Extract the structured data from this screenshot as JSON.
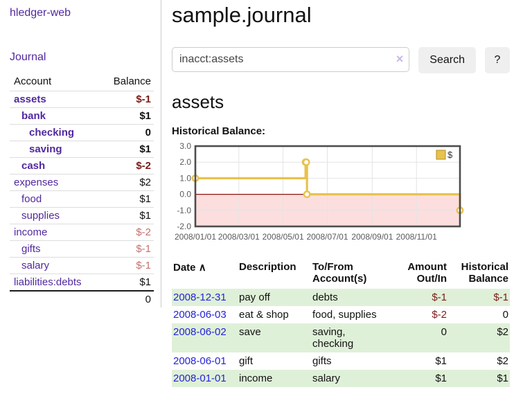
{
  "sidebar": {
    "app_title": "hledger-web",
    "journal_link": "Journal",
    "account_header": "Account",
    "balance_header": "Balance",
    "accounts": [
      {
        "name": "assets",
        "depth": 1,
        "bold": true,
        "name_style": "",
        "balance": "$-1",
        "balance_style": "negstrong"
      },
      {
        "name": "bank",
        "depth": 2,
        "bold": true,
        "name_style": "",
        "balance": "$1",
        "balance_style": ""
      },
      {
        "name": "checking",
        "depth": 3,
        "bold": true,
        "name_style": "",
        "balance": "0",
        "balance_style": ""
      },
      {
        "name": "saving",
        "depth": 3,
        "bold": true,
        "name_style": "",
        "balance": "$1",
        "balance_style": ""
      },
      {
        "name": "cash",
        "depth": 2,
        "bold": true,
        "name_style": "",
        "balance": "$-2",
        "balance_style": "negstrong"
      },
      {
        "name": "expenses",
        "depth": 1,
        "bold": false,
        "name_style": "",
        "balance": "$2",
        "balance_style": ""
      },
      {
        "name": "food",
        "depth": 2,
        "bold": false,
        "name_style": "",
        "balance": "$1",
        "balance_style": ""
      },
      {
        "name": "supplies",
        "depth": 2,
        "bold": false,
        "name_style": "",
        "balance": "$1",
        "balance_style": ""
      },
      {
        "name": "income",
        "depth": 1,
        "bold": false,
        "name_style": "muted",
        "balance": "$-2",
        "balance_style": "negmuted"
      },
      {
        "name": "gifts",
        "depth": 2,
        "bold": false,
        "name_style": "muted",
        "balance": "$-1",
        "balance_style": "negmuted"
      },
      {
        "name": "salary",
        "depth": 2,
        "bold": false,
        "name_style": "blue",
        "balance": "$-1",
        "balance_style": "negmuted"
      },
      {
        "name": "liabilities:debts",
        "depth": 1,
        "bold": false,
        "name_style": "",
        "balance": "$1",
        "balance_style": ""
      }
    ],
    "total": "0"
  },
  "header": {
    "title": "sample.journal"
  },
  "search": {
    "value": "inacct:assets",
    "clear_icon": "×",
    "button_label": "Search",
    "help_label": "?"
  },
  "main": {
    "account_heading": "assets",
    "chart_label": "Historical Balance:"
  },
  "chart_data": {
    "type": "line",
    "step": true,
    "title": "Historical Balance:",
    "legend": "$",
    "legend_position": "top-right",
    "grid": true,
    "xlim": [
      "2008-01-01",
      "2008-12-31"
    ],
    "ylim": [
      -2,
      3
    ],
    "x_ticks": [
      "2008/01/01",
      "2008/03/01",
      "2008/05/01",
      "2008/07/01",
      "2008/09/01",
      "2008/11/01"
    ],
    "y_ticks": [
      3.0,
      2.0,
      1.0,
      0.0,
      -1.0,
      -2.0
    ],
    "series": [
      {
        "name": "$",
        "points": [
          [
            "2008-01-01",
            1
          ],
          [
            "2008-06-01",
            2
          ],
          [
            "2008-06-02",
            2
          ],
          [
            "2008-06-03",
            0
          ],
          [
            "2008-12-31",
            -1
          ]
        ]
      }
    ],
    "colors": {
      "line": "#e9c24d",
      "marker_fill": "#ffffff",
      "negative_fill": "#fcdede",
      "zero_line": "#8c1510",
      "plot_border": "#4d4d4d",
      "gridline": "#e4e4e4",
      "tick_text": "#5a5a5a",
      "legend_border": "#b08f28"
    }
  },
  "transactions": {
    "headers": {
      "date": "Date",
      "sort_icon": "∧",
      "description": "Description",
      "accounts": "To/From Account(s)",
      "amount": "Amount Out/In",
      "balance": "Historical Balance"
    },
    "rows": [
      {
        "date": "2008-12-31",
        "description": "pay off",
        "accounts": "debts",
        "amount": "$-1",
        "amount_neg": true,
        "balance": "$-1",
        "balance_neg": true
      },
      {
        "date": "2008-06-03",
        "description": "eat & shop",
        "accounts": "food, supplies",
        "amount": "$-2",
        "amount_neg": true,
        "balance": "0",
        "balance_neg": false
      },
      {
        "date": "2008-06-02",
        "description": "save",
        "accounts": "saving, checking",
        "amount": "0",
        "amount_neg": false,
        "balance": "$2",
        "balance_neg": false
      },
      {
        "date": "2008-06-01",
        "description": "gift",
        "accounts": "gifts",
        "amount": "$1",
        "amount_neg": false,
        "balance": "$2",
        "balance_neg": false
      },
      {
        "date": "2008-01-01",
        "description": "income",
        "accounts": "salary",
        "amount": "$1",
        "amount_neg": false,
        "balance": "$1",
        "balance_neg": false
      }
    ]
  }
}
